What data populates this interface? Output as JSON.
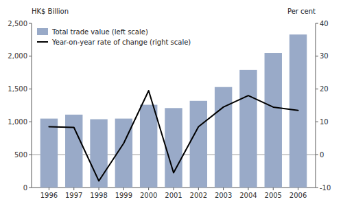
{
  "chart_data": {
    "type": "bar",
    "x": [
      1996,
      1997,
      1998,
      1999,
      2000,
      2001,
      2002,
      2003,
      2004,
      2005,
      2006
    ],
    "series": [
      {
        "name": "Total trade value (left scale)",
        "type": "bar",
        "color": "#99aac8",
        "values": [
          1050,
          1110,
          1040,
          1050,
          1260,
          1210,
          1320,
          1530,
          1790,
          2050,
          2330
        ]
      },
      {
        "name": "Year-on-year rate of change (right scale)",
        "type": "line",
        "color": "#000000",
        "axis": "y2",
        "values": [
          8.5,
          8.3,
          -8.0,
          3.5,
          19.5,
          -5.5,
          8.5,
          14.5,
          18.0,
          14.5,
          13.5
        ]
      }
    ],
    "y_label": "HK$ Billion",
    "y2_label": "Per cent",
    "xlim": [
      1995.3,
      2006.7
    ],
    "xticks": [
      1996,
      1997,
      1998,
      1999,
      2000,
      2001,
      2002,
      2003,
      2004,
      2005,
      2006
    ],
    "ylim": [
      0,
      2500
    ],
    "yticks": [
      0,
      500,
      {
        "value": 1000,
        "label": "1,000"
      },
      {
        "value": 1500,
        "label": "1,500"
      },
      {
        "value": 2000,
        "label": "2,000"
      },
      {
        "value": 2500,
        "label": "2,500"
      }
    ],
    "y2lim": [
      -10,
      40
    ],
    "y2ticks": [
      -10,
      0,
      10,
      20,
      30,
      40
    ],
    "legend": "upper left",
    "grid": false
  }
}
